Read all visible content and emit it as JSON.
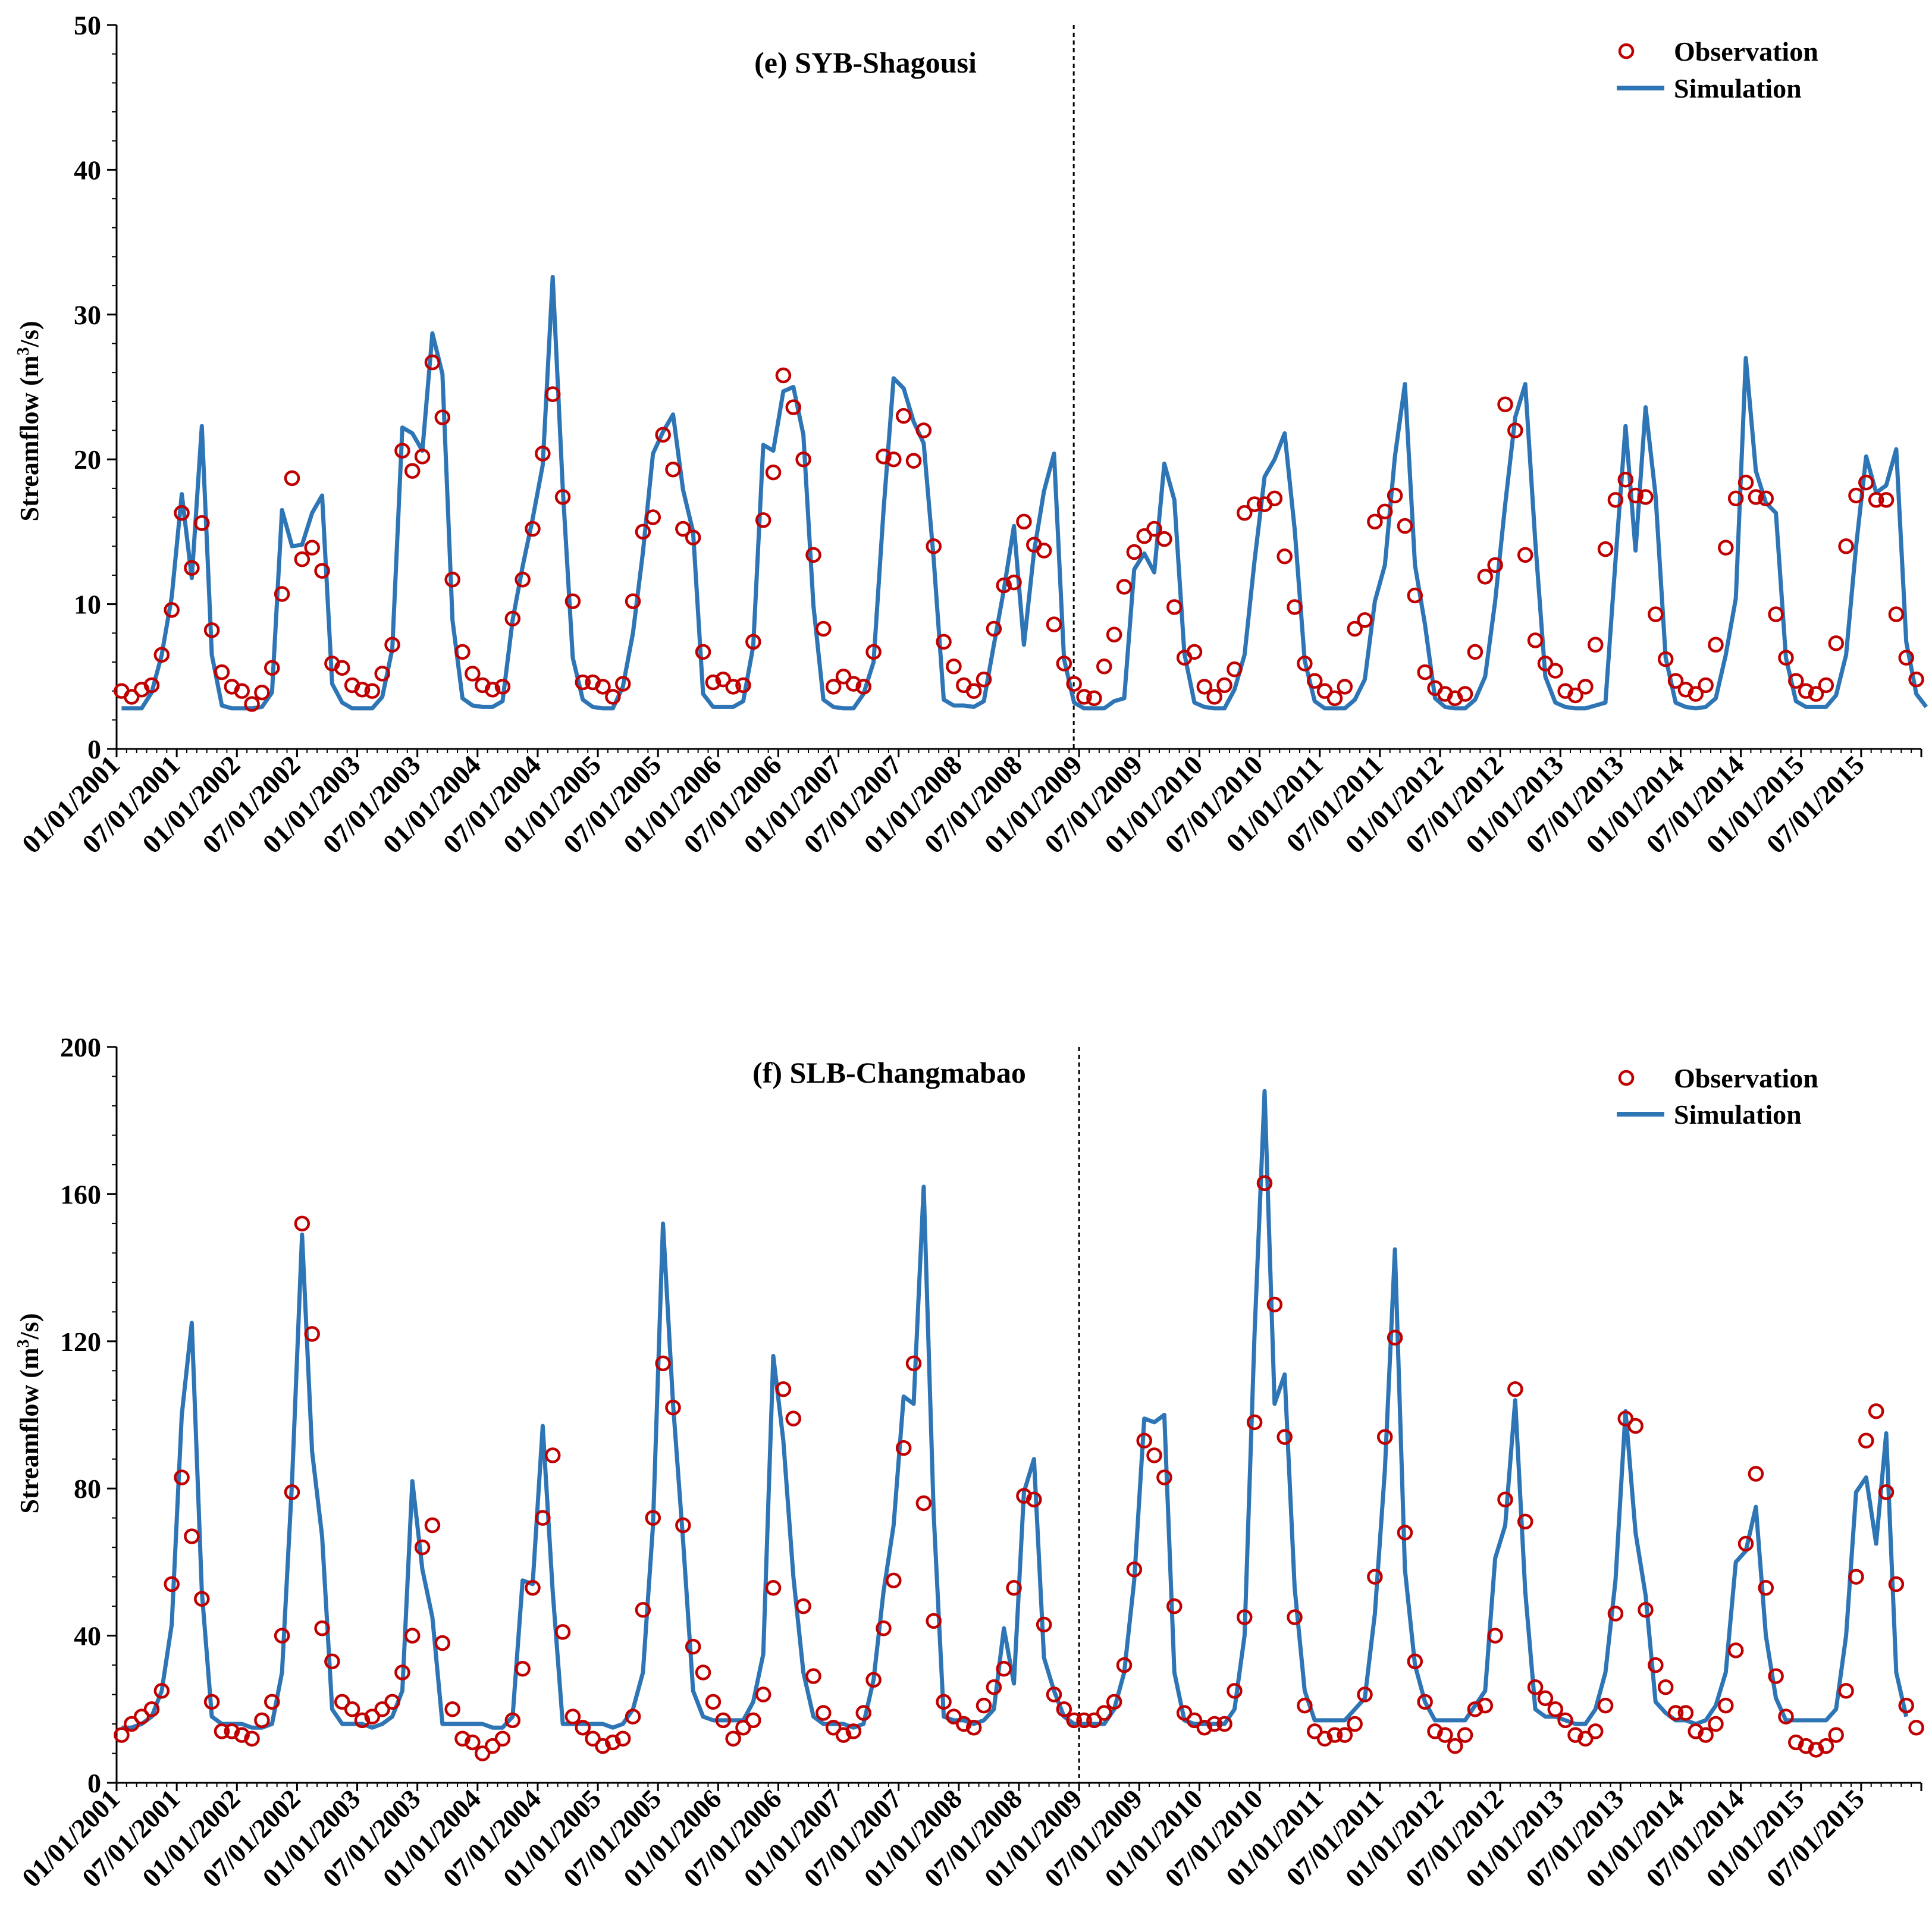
{
  "colors": {
    "observation": "#c00000",
    "simulation": "#2e75b6",
    "axis": "#000000"
  },
  "chart_data": [
    {
      "type": "line",
      "title": "(e) SYB-Shagousi",
      "ylabel_prefix": "Streamflow (m",
      "ylabel_sup": "3",
      "ylabel_suffix": "/s)",
      "xlabel": "",
      "ylim": [
        0,
        50
      ],
      "yticks": [
        "0",
        "10",
        "20",
        "30",
        "40",
        "50"
      ],
      "x_start": "01/01/2001",
      "x_end": "12/01/2015",
      "x_tick_labels": [
        "01/01/2001",
        "07/01/2001",
        "01/01/2002",
        "07/01/2002",
        "01/01/2003",
        "07/01/2003",
        "01/01/2004",
        "07/01/2004",
        "01/01/2005",
        "07/01/2005",
        "01/01/2006",
        "07/01/2006",
        "01/01/2007",
        "07/01/2007",
        "01/01/2008",
        "07/01/2008",
        "01/01/2009",
        "07/01/2009",
        "01/01/2010",
        "07/01/2010",
        "01/01/2011",
        "07/01/2011",
        "01/01/2012",
        "07/01/2012",
        "01/01/2013",
        "07/01/2013",
        "01/01/2014",
        "07/01/2014",
        "01/01/2015",
        "07/01/2015"
      ],
      "divider_at": "12/15/2008",
      "legend": {
        "position": "top-right",
        "entries": [
          "Observation",
          "Simulation"
        ]
      },
      "series": [
        {
          "name": "Observation",
          "marker": "circle",
          "values": [
            4.0,
            3.6,
            4.1,
            4.4,
            6.5,
            9.6,
            16.3,
            12.5,
            15.6,
            8.2,
            5.3,
            4.3,
            4.0,
            3.1,
            3.9,
            5.6,
            10.7,
            18.7,
            13.1,
            13.9,
            12.3,
            5.9,
            5.6,
            4.4,
            4.1,
            4.0,
            5.2,
            7.2,
            20.6,
            19.2,
            20.2,
            26.7,
            22.9,
            11.7,
            6.7,
            5.2,
            4.4,
            4.1,
            4.3,
            9.0,
            11.7,
            15.2,
            20.4,
            24.5,
            17.4,
            10.2,
            4.6,
            4.6,
            4.3,
            3.6,
            4.5,
            10.2,
            15.0,
            16.0,
            21.7,
            19.3,
            15.2,
            14.6,
            6.7,
            4.6,
            4.8,
            4.3,
            4.4,
            7.4,
            15.8,
            19.1,
            25.8,
            23.6,
            20.0,
            13.4,
            8.3,
            4.3,
            5.0,
            4.5,
            4.3,
            6.7,
            20.2,
            20.0,
            23.0,
            19.9,
            22.0,
            14.0,
            7.4,
            5.7,
            4.4,
            4.0,
            4.8,
            8.3,
            11.3,
            11.5,
            15.7,
            14.1,
            13.7,
            8.6,
            5.9,
            4.5,
            3.6,
            3.5,
            5.7,
            7.9,
            11.2,
            13.6,
            14.7,
            15.2,
            14.5,
            9.8,
            6.3,
            6.7,
            4.3,
            3.6,
            4.4,
            5.5,
            16.3,
            16.9,
            16.9,
            17.3,
            13.3,
            9.8,
            5.9,
            4.7,
            4.0,
            3.5,
            4.3,
            8.3,
            8.9,
            15.7,
            16.4,
            17.5,
            15.4,
            10.6,
            5.3,
            4.2,
            3.8,
            3.5,
            3.8,
            6.7,
            11.9,
            12.7,
            23.8,
            22.0,
            13.4,
            7.5,
            5.9,
            5.4,
            4.0,
            3.7,
            4.3,
            7.2,
            13.8,
            17.2,
            18.6,
            17.5,
            17.4,
            9.3,
            6.2,
            4.7,
            4.1,
            3.8,
            4.4,
            7.2,
            13.9,
            17.3,
            18.4,
            17.4,
            17.3,
            9.3,
            6.3,
            4.7,
            4.0,
            3.8,
            4.4,
            7.3,
            14.0,
            17.5,
            18.4,
            17.2,
            17.2,
            9.3,
            6.3,
            4.8
          ]
        },
        {
          "name": "Simulation",
          "marker": "line",
          "values": [
            2.8,
            2.8,
            2.8,
            3.9,
            6.5,
            10.5,
            17.6,
            11.8,
            22.3,
            6.5,
            3.0,
            2.8,
            2.8,
            2.8,
            2.9,
            3.9,
            16.5,
            14.0,
            14.1,
            16.3,
            17.5,
            4.5,
            3.2,
            2.8,
            2.8,
            2.8,
            3.6,
            6.9,
            22.2,
            21.8,
            20.6,
            28.7,
            25.9,
            8.9,
            3.5,
            3.0,
            2.9,
            2.9,
            3.3,
            8.9,
            12.6,
            15.9,
            19.6,
            32.6,
            18.0,
            6.3,
            3.4,
            2.9,
            2.8,
            2.8,
            4.3,
            8.0,
            13.6,
            20.4,
            21.9,
            23.1,
            17.9,
            15.0,
            3.8,
            2.9,
            2.9,
            2.9,
            3.3,
            7.1,
            21.0,
            20.6,
            24.7,
            25.0,
            21.7,
            9.9,
            3.4,
            2.9,
            2.8,
            2.8,
            3.8,
            6.0,
            16.5,
            25.6,
            24.9,
            22.6,
            21.1,
            13.1,
            3.4,
            3.0,
            3.0,
            2.9,
            3.3,
            7.2,
            11.0,
            15.4,
            7.2,
            13.6,
            17.8,
            20.4,
            6.2,
            3.2,
            2.8,
            2.8,
            2.8,
            3.3,
            3.5,
            12.4,
            13.5,
            12.2,
            19.7,
            17.2,
            6.6,
            3.2,
            2.9,
            2.8,
            2.8,
            4.1,
            6.5,
            13.0,
            18.8,
            20.0,
            21.8,
            15.2,
            6.1,
            3.3,
            2.8,
            2.8,
            2.8,
            3.4,
            4.8,
            10.2,
            12.7,
            20.2,
            25.2,
            12.7,
            8.6,
            3.5,
            2.9,
            2.8,
            2.8,
            3.4,
            5.0,
            10.2,
            16.9,
            22.9,
            25.2,
            14.3,
            5.0,
            3.2,
            2.9,
            2.8,
            2.8,
            3.0,
            3.2,
            13.0,
            22.3,
            13.7,
            23.6,
            17.5,
            6.3,
            3.2,
            2.9,
            2.8,
            2.9,
            3.5,
            6.5,
            10.4,
            27.0,
            19.2,
            17.0,
            16.3,
            6.3,
            3.3,
            2.9,
            2.9,
            2.9,
            3.7,
            6.5,
            14.0,
            20.2,
            17.7,
            18.2,
            20.7,
            7.4,
            3.8,
            2.9
          ]
        }
      ]
    },
    {
      "type": "line",
      "title": "(f) SLB-Changmabao",
      "ylabel_prefix": "Streamflow (m",
      "ylabel_sup": "3",
      "ylabel_suffix": "/s)",
      "xlabel": "",
      "ylim": [
        0,
        200
      ],
      "yticks": [
        "0",
        "40",
        "80",
        "120",
        "160",
        "200"
      ],
      "x_start": "01/01/2001",
      "x_end": "12/01/2015",
      "x_tick_labels": [
        "01/01/2001",
        "07/01/2001",
        "01/01/2002",
        "07/01/2002",
        "01/01/2003",
        "07/01/2003",
        "01/01/2004",
        "07/01/2004",
        "01/01/2005",
        "07/01/2005",
        "01/01/2006",
        "07/01/2006",
        "01/01/2007",
        "07/01/2007",
        "01/01/2008",
        "07/01/2008",
        "01/01/2009",
        "07/01/2009",
        "01/01/2010",
        "07/01/2010",
        "01/01/2011",
        "07/01/2011",
        "01/01/2012",
        "07/01/2012",
        "01/01/2013",
        "07/01/2013",
        "01/01/2014",
        "07/01/2014",
        "01/01/2015",
        "07/01/2015"
      ],
      "divider_at": "01/01/2009",
      "legend": {
        "position": "top-right",
        "entries": [
          "Observation",
          "Simulation"
        ]
      },
      "series": [
        {
          "name": "Observation",
          "marker": "circle",
          "values": [
            13,
            16,
            18,
            20,
            25,
            54,
            83,
            67,
            50,
            22,
            14,
            14,
            13,
            12,
            17,
            22,
            40,
            79,
            152,
            122,
            42,
            33,
            22,
            20,
            17,
            18,
            20,
            22,
            30,
            40,
            64,
            70,
            38,
            20,
            12,
            11,
            8,
            10,
            12,
            17,
            31,
            53,
            72,
            89,
            41,
            18,
            15,
            12,
            10,
            11,
            12,
            18,
            47,
            72,
            114,
            102,
            70,
            37,
            30,
            22,
            17,
            12,
            15,
            17,
            24,
            53,
            107,
            99,
            48,
            29,
            19,
            15,
            13,
            14,
            19,
            28,
            42,
            55,
            91,
            114,
            76,
            44,
            22,
            18,
            16,
            15,
            21,
            26,
            31,
            53,
            78,
            77,
            43,
            24,
            20,
            17,
            17,
            17,
            19,
            22,
            32,
            58,
            93,
            89,
            83,
            48,
            19,
            17,
            15,
            16,
            16,
            25,
            45,
            98,
            163,
            130,
            94,
            45,
            21,
            14,
            12,
            13,
            13,
            16,
            24,
            56,
            94,
            121,
            68,
            33,
            22,
            14,
            13,
            10,
            13,
            20,
            21,
            40,
            77,
            107,
            71,
            26,
            23,
            20,
            17,
            13,
            12,
            14,
            21,
            46,
            99,
            97,
            47,
            32,
            26,
            19,
            19,
            14,
            13,
            16,
            21,
            36,
            65,
            84,
            53,
            29,
            18,
            11,
            10,
            9,
            10,
            13,
            25,
            56,
            93,
            101,
            79,
            54,
            21,
            15
          ]
        },
        {
          "name": "Simulation",
          "marker": "line",
          "values": [
            15,
            15,
            16,
            18,
            25,
            43,
            100,
            125,
            52,
            18,
            16,
            16,
            16,
            15,
            15,
            16,
            30,
            82,
            149,
            90,
            67,
            20,
            16,
            16,
            16,
            15,
            16,
            18,
            25,
            82,
            58,
            45,
            16,
            16,
            16,
            16,
            16,
            15,
            15,
            18,
            55,
            54,
            97,
            52,
            16,
            16,
            16,
            16,
            16,
            15,
            16,
            20,
            30,
            70,
            152,
            103,
            66,
            25,
            18,
            17,
            17,
            17,
            17,
            22,
            35,
            116,
            93,
            56,
            30,
            18,
            16,
            16,
            16,
            15,
            16,
            28,
            52,
            70,
            105,
            103,
            162,
            73,
            18,
            17,
            17,
            16,
            17,
            20,
            42,
            27,
            79,
            88,
            34,
            25,
            18,
            16,
            16,
            16,
            16,
            20,
            30,
            55,
            99,
            98,
            100,
            30,
            17,
            16,
            16,
            16,
            16,
            20,
            40,
            122,
            188,
            103,
            111,
            53,
            25,
            17,
            17,
            17,
            17,
            20,
            23,
            46,
            85,
            145,
            58,
            32,
            22,
            17,
            17,
            17,
            17,
            21,
            25,
            61,
            70,
            104,
            52,
            20,
            18,
            18,
            17,
            16,
            16,
            20,
            30,
            55,
            101,
            68,
            51,
            22,
            19,
            17,
            17,
            16,
            17,
            21,
            30,
            60,
            63,
            75,
            40,
            23,
            17,
            17,
            17,
            17,
            17,
            20,
            40,
            79,
            83,
            65,
            95,
            30,
            18
          ]
        }
      ]
    }
  ]
}
